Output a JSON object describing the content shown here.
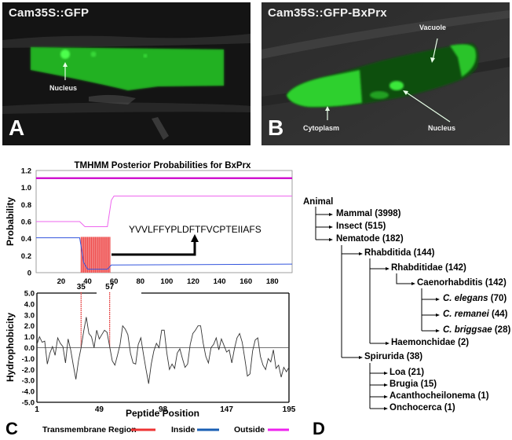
{
  "panels": {
    "A": {
      "letter": "A",
      "title": "Cam35S::GFP",
      "labels": [
        {
          "text": "Nucleus"
        }
      ]
    },
    "B": {
      "letter": "B",
      "title": "Cam35S::GFP-BxPrx",
      "labels": [
        {
          "text": "Vacuole"
        },
        {
          "text": "Cytoplasm"
        },
        {
          "text": "Nucleus"
        }
      ]
    },
    "C": {
      "letter": "C"
    },
    "D": {
      "letter": "D"
    }
  },
  "chart_data": [
    {
      "type": "line",
      "title": "TMHMM Posterior Probabilities for BxPrx",
      "xlabel": "",
      "ylabel": "Probability",
      "xlim": [
        1,
        195
      ],
      "ylim": [
        0,
        1.2
      ],
      "xticks": [
        20,
        40,
        60,
        80,
        100,
        120,
        140,
        160,
        180
      ],
      "yticks": [
        "0",
        "0.2",
        "0.4",
        "0.6",
        "0.8",
        "1.0",
        "1.2"
      ],
      "series": [
        {
          "name": "Outside (top bar)",
          "color": "#cc00cc",
          "x": [
            1,
            195
          ],
          "values": [
            1.11,
            1.11
          ]
        },
        {
          "name": "Outside",
          "color": "#ee66ee",
          "x": [
            1,
            34,
            38,
            55,
            58,
            60,
            195
          ],
          "values": [
            0.6,
            0.6,
            0.54,
            0.54,
            0.85,
            0.9,
            0.9
          ]
        },
        {
          "name": "Inside",
          "color": "#3355dd",
          "x": [
            1,
            34,
            37,
            40,
            55,
            58,
            60,
            195
          ],
          "values": [
            0.41,
            0.41,
            0.12,
            0.04,
            0.04,
            0.09,
            0.09,
            0.1
          ]
        },
        {
          "name": "Transmembrane Region",
          "color": "#ee3333",
          "type": "bar",
          "x_range": [
            35,
            57
          ],
          "value": 0.42
        }
      ],
      "annotation": "YVVLFFYPLDFTFVCPTEIIAFS"
    },
    {
      "type": "line",
      "title": "",
      "xlabel": "Peptide Position",
      "ylabel": "Hydrophobicity",
      "xlim": [
        1,
        195
      ],
      "ylim": [
        -5.0,
        5.0
      ],
      "xticks": [
        1,
        49,
        98,
        147,
        195
      ],
      "yticks": [
        "5.0",
        "4.0",
        "3.0",
        "2.0",
        "1.0",
        "0.0",
        "-1.0",
        "-2.0",
        "-3.0",
        "-4.0",
        "-5.0"
      ],
      "markers": [
        {
          "x": 35,
          "label": "35"
        },
        {
          "x": 57,
          "label": "57"
        }
      ],
      "series": [
        {
          "name": "Hydrophobicity",
          "color": "#333333",
          "x": [
            1,
            3,
            5,
            7,
            9,
            11,
            13,
            15,
            17,
            19,
            21,
            23,
            25,
            27,
            29,
            31,
            33,
            35,
            37,
            39,
            41,
            43,
            45,
            47,
            49,
            51,
            53,
            55,
            57,
            59,
            61,
            63,
            65,
            67,
            69,
            71,
            73,
            75,
            77,
            79,
            81,
            83,
            85,
            87,
            89,
            91,
            93,
            95,
            97,
            99,
            101,
            103,
            105,
            107,
            109,
            111,
            113,
            115,
            117,
            119,
            121,
            123,
            125,
            127,
            129,
            131,
            133,
            135,
            137,
            139,
            141,
            143,
            145,
            147,
            149,
            151,
            153,
            155,
            157,
            159,
            161,
            163,
            165,
            167,
            169,
            171,
            173,
            175,
            177,
            179,
            181,
            183,
            185,
            187,
            189,
            191,
            193,
            195
          ],
          "values": [
            0.3,
            1.0,
            0.5,
            0.6,
            -1.5,
            -0.5,
            0.1,
            -0.7,
            0.9,
            0.4,
            0.1,
            -1.4,
            0.8,
            -0.2,
            -1.6,
            -2.9,
            -1.2,
            0.0,
            1.5,
            2.8,
            1.3,
            1.0,
            0.0,
            1.6,
            0.8,
            1.2,
            1.6,
            1.4,
            0.1,
            -1.2,
            -1.6,
            -0.7,
            0.3,
            2.0,
            1.7,
            1.2,
            -0.5,
            -1.4,
            -1.5,
            0.3,
            0.9,
            -0.6,
            -2.0,
            -3.3,
            -1.5,
            -0.3,
            0.4,
            0.0,
            1.6,
            1.6,
            -0.5,
            -2.0,
            -1.5,
            -1.9,
            -0.5,
            -0.1,
            -1.0,
            -1.8,
            -1.5,
            0.3,
            1.3,
            1.6,
            2.0,
            2.0,
            0.4,
            -0.8,
            -1.4,
            0.0,
            0.3,
            0.9,
            -0.2,
            0.8,
            0.2,
            -0.4,
            -0.2,
            -1.4,
            -0.1,
            0.9,
            1.3,
            0.5,
            -1.0,
            -2.6,
            -2.4,
            -0.3,
            0.7,
            0.9,
            -0.8,
            -1.6,
            -2.0,
            -1.0,
            -1.3,
            -0.2,
            -1.9,
            -1.6,
            -2.7,
            -1.8,
            -2.2,
            -1.8
          ]
        }
      ]
    }
  ],
  "legend": {
    "items": [
      {
        "label": "Transmembrane Region",
        "color": "#ee3333"
      },
      {
        "label": "Inside",
        "color": "#1a5fb4"
      },
      {
        "label": "Outside",
        "color": "#ee22ee"
      }
    ]
  },
  "tree": {
    "root": "Animal",
    "nodes": [
      {
        "name": "Mammal",
        "count": "(3998)",
        "italic": false
      },
      {
        "name": "Insect",
        "count": "(515)",
        "italic": false
      },
      {
        "name": "Nematode",
        "count": "(182)",
        "italic": false
      },
      {
        "name": "Rhabditida",
        "count": "(144)",
        "italic": false
      },
      {
        "name": "Rhabditidae",
        "count": "(142)",
        "italic": false
      },
      {
        "name": "Caenorhabditis",
        "count": "(142)",
        "italic": false
      },
      {
        "name": "C. elegans",
        "count": "(70)",
        "italic": true
      },
      {
        "name": "C. remanei",
        "count": "(44)",
        "italic": true
      },
      {
        "name": "C. briggsae",
        "count": "(28)",
        "italic": true
      },
      {
        "name": "Haemonchidae",
        "count": "(2)",
        "italic": false
      },
      {
        "name": "Spirurida",
        "count": "(38)",
        "italic": false
      },
      {
        "name": "Loa",
        "count": "(21)",
        "italic": false
      },
      {
        "name": "Brugia",
        "count": "(15)",
        "italic": false
      },
      {
        "name": "Acanthocheilonema",
        "count": "(1)",
        "italic": false
      },
      {
        "name": "Onchocerca",
        "count": "(1)",
        "italic": false
      }
    ]
  }
}
